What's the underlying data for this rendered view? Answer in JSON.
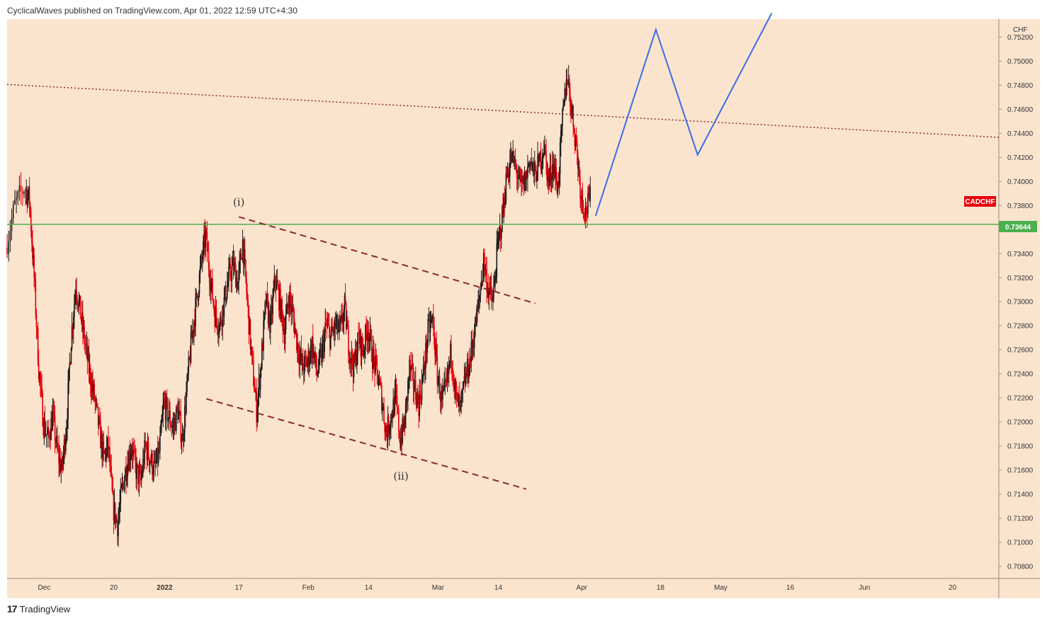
{
  "header": {
    "publisher_text": "CyclicalWaves published on TradingView.com, Apr 01, 2022 12:59 UTC+4:30"
  },
  "footer": {
    "logo_glyph": "17",
    "brand": "TradingView"
  },
  "colors": {
    "background": "#fbe4cd",
    "candle_up": "#1a1a1a",
    "candle_down": "#e8000b",
    "horizontal_line": "#4caf50",
    "channel": "#8b2a2a",
    "resistance_dotted": "#8b2a2a",
    "projection": "#3a6ee8",
    "symbol_badge": "#e8000b"
  },
  "chart_data": {
    "type": "candlestick",
    "symbol": "CADCHF",
    "currency": "CHF",
    "last_price_label": "0.73644",
    "last_price": 0.73644,
    "ylim": [
      0.707,
      0.7535
    ],
    "y_ticks": [
      "0.70800",
      "0.71000",
      "0.71200",
      "0.71400",
      "0.71600",
      "0.71800",
      "0.72000",
      "0.72200",
      "0.72400",
      "0.72600",
      "0.72800",
      "0.73000",
      "0.73200",
      "0.73400",
      "0.73600",
      "0.73800",
      "0.74000",
      "0.74200",
      "0.74400",
      "0.74600",
      "0.74800",
      "0.75000",
      "0.75200"
    ],
    "x_ticks": [
      {
        "label": "Dec",
        "day": 5
      },
      {
        "label": "20",
        "day": 20
      },
      {
        "label": "2022",
        "day": 31
      },
      {
        "label": "17",
        "day": 47
      },
      {
        "label": "Feb",
        "day": 62
      },
      {
        "label": "14",
        "day": 75
      },
      {
        "label": "Mar",
        "day": 90
      },
      {
        "label": "14",
        "day": 103
      },
      {
        "label": "Apr",
        "day": 121
      },
      {
        "label": "18",
        "day": 138
      },
      {
        "label": "May",
        "day": 151
      },
      {
        "label": "16",
        "day": 166
      },
      {
        "label": "Jun",
        "day": 182
      },
      {
        "label": "20",
        "day": 201
      }
    ],
    "x_range_days": [
      -3,
      211
    ],
    "price_path": [
      [
        -3,
        0.7345
      ],
      [
        -1,
        0.738
      ],
      [
        1,
        0.7395
      ],
      [
        2,
        0.7385
      ],
      [
        3,
        0.732
      ],
      [
        4,
        0.7245
      ],
      [
        5,
        0.72
      ],
      [
        6,
        0.7185
      ],
      [
        7,
        0.7205
      ],
      [
        8,
        0.7175
      ],
      [
        9,
        0.716
      ],
      [
        10,
        0.72
      ],
      [
        11,
        0.727
      ],
      [
        12,
        0.7315
      ],
      [
        13,
        0.729
      ],
      [
        14,
        0.7265
      ],
      [
        15,
        0.724
      ],
      [
        16,
        0.722
      ],
      [
        17,
        0.7195
      ],
      [
        18,
        0.717
      ],
      [
        19,
        0.718
      ],
      [
        20,
        0.713
      ],
      [
        21,
        0.7115
      ],
      [
        22,
        0.7145
      ],
      [
        23,
        0.7165
      ],
      [
        24,
        0.718
      ],
      [
        25,
        0.716
      ],
      [
        26,
        0.715
      ],
      [
        27,
        0.718
      ],
      [
        28,
        0.717
      ],
      [
        29,
        0.716
      ],
      [
        30,
        0.7175
      ],
      [
        31,
        0.7215
      ],
      [
        32,
        0.7205
      ],
      [
        33,
        0.7195
      ],
      [
        34,
        0.721
      ],
      [
        35,
        0.7185
      ],
      [
        36,
        0.723
      ],
      [
        37,
        0.727
      ],
      [
        38,
        0.73
      ],
      [
        39,
        0.733
      ],
      [
        40,
        0.7355
      ],
      [
        41,
        0.732
      ],
      [
        42,
        0.729
      ],
      [
        43,
        0.728
      ],
      [
        44,
        0.73
      ],
      [
        45,
        0.732
      ],
      [
        46,
        0.733
      ],
      [
        47,
        0.7315
      ],
      [
        48,
        0.735
      ],
      [
        49,
        0.73
      ],
      [
        50,
        0.725
      ],
      [
        51,
        0.721
      ],
      [
        52,
        0.725
      ],
      [
        53,
        0.73
      ],
      [
        54,
        0.728
      ],
      [
        55,
        0.732
      ],
      [
        56,
        0.73
      ],
      [
        57,
        0.7275
      ],
      [
        58,
        0.7305
      ],
      [
        59,
        0.7285
      ],
      [
        60,
        0.726
      ],
      [
        61,
        0.7245
      ],
      [
        62,
        0.725
      ],
      [
        63,
        0.7265
      ],
      [
        64,
        0.724
      ],
      [
        65,
        0.7255
      ],
      [
        66,
        0.728
      ],
      [
        67,
        0.727
      ],
      [
        68,
        0.728
      ],
      [
        69,
        0.7275
      ],
      [
        70,
        0.7295
      ],
      [
        71,
        0.726
      ],
      [
        72,
        0.7245
      ],
      [
        73,
        0.727
      ],
      [
        74,
        0.726
      ],
      [
        75,
        0.728
      ],
      [
        76,
        0.7255
      ],
      [
        77,
        0.724
      ],
      [
        78,
        0.722
      ],
      [
        79,
        0.719
      ],
      [
        80,
        0.7205
      ],
      [
        81,
        0.722
      ],
      [
        82,
        0.7185
      ],
      [
        83,
        0.72
      ],
      [
        84,
        0.7245
      ],
      [
        85,
        0.723
      ],
      [
        86,
        0.7215
      ],
      [
        87,
        0.724
      ],
      [
        88,
        0.7275
      ],
      [
        89,
        0.7285
      ],
      [
        90,
        0.724
      ],
      [
        91,
        0.7215
      ],
      [
        92,
        0.723
      ],
      [
        93,
        0.726
      ],
      [
        94,
        0.722
      ],
      [
        95,
        0.721
      ],
      [
        96,
        0.7235
      ],
      [
        97,
        0.725
      ],
      [
        98,
        0.7275
      ],
      [
        99,
        0.73
      ],
      [
        100,
        0.7335
      ],
      [
        101,
        0.731
      ],
      [
        102,
        0.73
      ],
      [
        103,
        0.7345
      ],
      [
        104,
        0.737
      ],
      [
        105,
        0.7405
      ],
      [
        106,
        0.742
      ],
      [
        107,
        0.741
      ],
      [
        108,
        0.7395
      ],
      [
        109,
        0.74
      ],
      [
        110,
        0.742
      ],
      [
        111,
        0.7405
      ],
      [
        112,
        0.7415
      ],
      [
        113,
        0.743
      ],
      [
        114,
        0.74
      ],
      [
        115,
        0.7415
      ],
      [
        116,
        0.7395
      ],
      [
        117,
        0.745
      ],
      [
        118,
        0.749
      ],
      [
        119,
        0.746
      ],
      [
        120,
        0.743
      ],
      [
        121,
        0.739
      ],
      [
        122,
        0.7375
      ],
      [
        123,
        0.7385
      ]
    ],
    "annotations": [
      {
        "label": "(i)",
        "day": 47,
        "price": 0.738
      },
      {
        "label": "(ii)",
        "day": 82,
        "price": 0.7152
      }
    ],
    "channel_upper": [
      [
        47,
        0.73706
      ],
      [
        111,
        0.72986
      ]
    ],
    "channel_lower": [
      [
        40,
        0.72193
      ],
      [
        109,
        0.71443
      ]
    ],
    "resistance_dotted": [
      [
        -3,
        0.74807
      ],
      [
        211,
        0.74367
      ]
    ],
    "horizontal_level": 0.73644,
    "projection": [
      [
        124,
        0.73714
      ],
      [
        137,
        0.75263
      ],
      [
        146,
        0.74222
      ],
      [
        162,
        0.754
      ]
    ]
  }
}
